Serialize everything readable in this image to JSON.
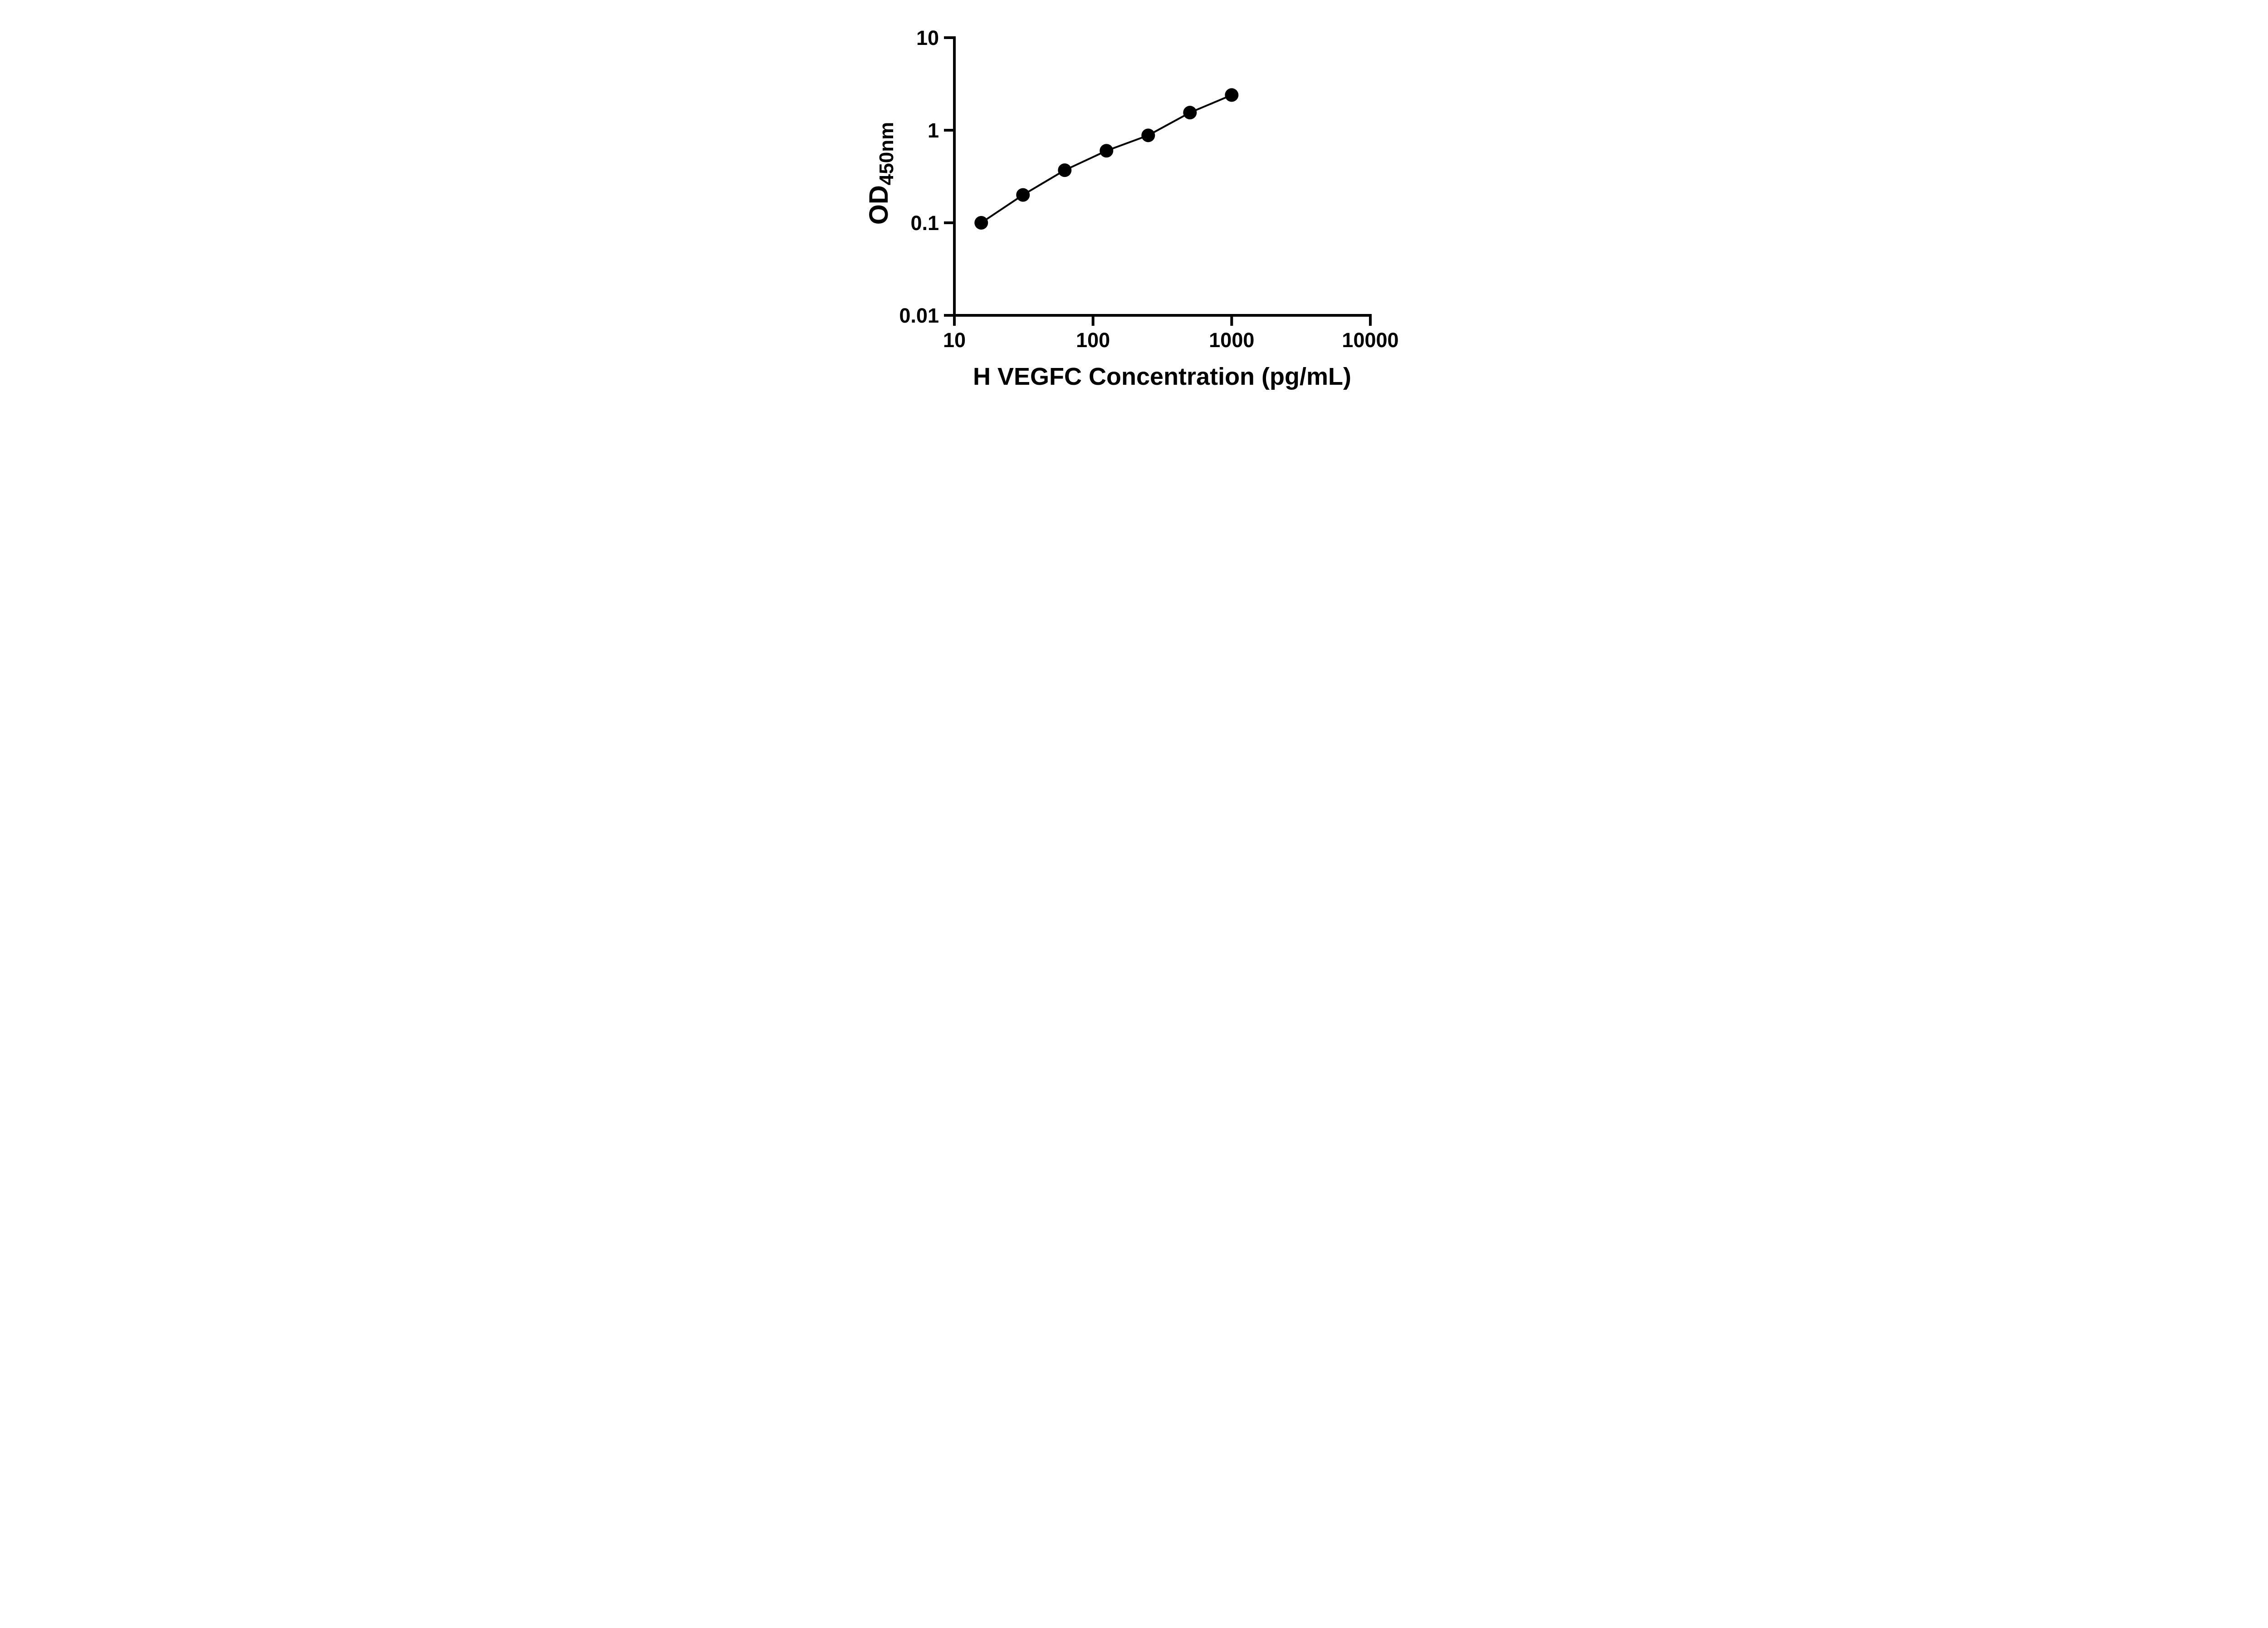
{
  "chart_data": {
    "type": "scatter",
    "title": "",
    "xlabel": "H VEGFC Concentration (pg/mL)",
    "ylabel": "OD450nm",
    "ylabel_parts": {
      "main": "OD",
      "subscript": "450nm"
    },
    "x_scale": "log",
    "y_scale": "log",
    "xlim": [
      10,
      10000
    ],
    "ylim": [
      0.01,
      10
    ],
    "x_tick_values": [
      10,
      100,
      1000,
      10000
    ],
    "x_tick_labels": [
      "10",
      "100",
      "1000",
      "10000"
    ],
    "y_tick_values": [
      0.01,
      0.1,
      1,
      10
    ],
    "y_tick_labels": [
      "0.01",
      "0.1",
      "1",
      "10"
    ],
    "grid": false,
    "legend": false,
    "marker": {
      "shape": "circle",
      "color": "#000000",
      "radius": 15
    },
    "line_color": "#000000",
    "connect_points_with_line": true,
    "x": [
      15.625,
      31.25,
      62.5,
      125,
      250,
      500,
      1000
    ],
    "y": [
      0.1,
      0.2,
      0.37,
      0.6,
      0.88,
      1.55,
      2.4
    ]
  },
  "colors": {
    "foreground": "#000000",
    "background": "#ffffff"
  }
}
